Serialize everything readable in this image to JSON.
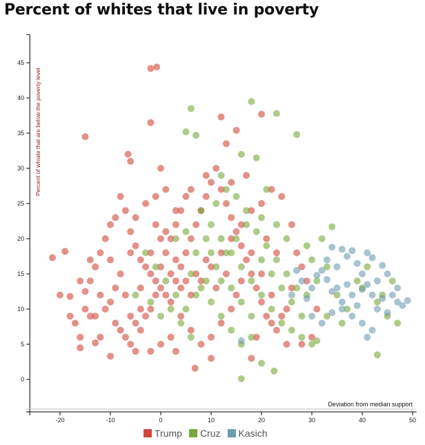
{
  "chart_data": {
    "type": "scatter",
    "title": "Percent of whites that live in poverty",
    "xlabel": "Deviation from median support",
    "ylabel": "Percent of whiate that are below the poverty level",
    "xlim": [
      -26,
      50.5
    ],
    "ylim": [
      -4.5,
      49
    ],
    "xticks": [
      "-20",
      "-10",
      "0",
      "10",
      "20",
      "30",
      "40",
      "50"
    ],
    "xtick_values": [
      -20,
      -10,
      0,
      10,
      20,
      30,
      40,
      50
    ],
    "yticks": [
      "0",
      "5",
      "10",
      "15",
      "20",
      "25",
      "30",
      "35",
      "40",
      "45"
    ],
    "ytick_values": [
      0,
      5,
      10,
      15,
      20,
      25,
      30,
      35,
      40,
      45
    ],
    "legend_position": "bottom-center",
    "series": [
      {
        "name": "Trump",
        "color": "#d0473a",
        "points": [
          [
            -2,
            44.2
          ],
          [
            -0.8,
            44.4
          ],
          [
            -15,
            34.5
          ],
          [
            -2,
            36.5
          ],
          [
            12,
            37.3
          ],
          [
            20,
            37.7
          ],
          [
            15,
            35.4
          ],
          [
            13,
            33.5
          ],
          [
            -6.5,
            32
          ],
          [
            -6,
            31
          ],
          [
            -21.5,
            17.3
          ],
          [
            -19,
            18.2
          ],
          [
            6.8,
            1.6
          ],
          [
            -10,
            3.3
          ],
          [
            -13,
            5.2
          ],
          [
            -16,
            4.5
          ],
          [
            -16,
            6
          ],
          [
            -17,
            8
          ],
          [
            -14,
            9
          ],
          [
            -18,
            11.8
          ],
          [
            -15,
            12.5
          ],
          [
            -14,
            14
          ],
          [
            -13,
            16
          ],
          [
            -12,
            18
          ],
          [
            -11,
            20
          ],
          [
            -10,
            22
          ],
          [
            -9,
            23
          ],
          [
            -8,
            26
          ],
          [
            -7,
            24
          ],
          [
            -6,
            21
          ],
          [
            -5,
            19
          ],
          [
            -4,
            17
          ],
          [
            -3,
            16
          ],
          [
            -2,
            15
          ],
          [
            -1,
            14
          ],
          [
            0,
            13
          ],
          [
            1,
            12
          ],
          [
            2,
            11
          ],
          [
            3,
            14
          ],
          [
            4,
            16
          ],
          [
            5,
            18
          ],
          [
            6,
            20
          ],
          [
            7,
            22
          ],
          [
            8,
            24
          ],
          [
            9,
            26
          ],
          [
            10,
            28
          ],
          [
            11,
            30
          ],
          [
            12,
            27
          ],
          [
            13,
            25
          ],
          [
            14,
            23
          ],
          [
            15,
            21
          ],
          [
            16,
            19
          ],
          [
            17,
            17
          ],
          [
            18,
            15
          ],
          [
            19,
            13
          ],
          [
            20,
            11
          ],
          [
            21,
            9
          ],
          [
            22,
            8
          ],
          [
            23,
            7
          ],
          [
            25,
            5
          ],
          [
            28,
            5
          ],
          [
            30,
            6
          ],
          [
            -9,
            8
          ],
          [
            -8,
            7
          ],
          [
            -7,
            6
          ],
          [
            -6,
            5
          ],
          [
            -5,
            4
          ],
          [
            -4,
            7
          ],
          [
            -3,
            9
          ],
          [
            -2,
            10
          ],
          [
            -1,
            12
          ],
          [
            0,
            16
          ],
          [
            1,
            18
          ],
          [
            2,
            20
          ],
          [
            3,
            22
          ],
          [
            4,
            24
          ],
          [
            5,
            26
          ],
          [
            0,
            30
          ],
          [
            1,
            27
          ],
          [
            -1,
            26
          ],
          [
            -3,
            25
          ],
          [
            -5,
            23
          ],
          [
            -6,
            18
          ],
          [
            -8,
            15
          ],
          [
            -9,
            13
          ],
          [
            -10,
            11
          ],
          [
            -11,
            10
          ],
          [
            -12,
            12
          ],
          [
            -13,
            9
          ],
          [
            -15,
            10
          ],
          [
            -16,
            14
          ],
          [
            -14,
            17
          ],
          [
            -10,
            17
          ],
          [
            -7,
            12
          ],
          [
            -4,
            13
          ],
          [
            -2,
            18
          ],
          [
            0,
            20
          ],
          [
            2,
            15
          ],
          [
            4,
            13
          ],
          [
            6,
            12
          ],
          [
            8,
            14
          ],
          [
            10,
            16
          ],
          [
            12,
            18
          ],
          [
            14,
            20
          ],
          [
            16,
            22
          ],
          [
            18,
            24
          ],
          [
            20,
            25
          ],
          [
            22,
            27
          ],
          [
            24,
            26
          ],
          [
            26,
            22
          ],
          [
            27,
            18
          ],
          [
            28,
            16
          ],
          [
            26,
            13
          ],
          [
            25,
            10
          ],
          [
            24,
            9
          ],
          [
            22,
            12
          ],
          [
            20,
            15
          ],
          [
            18,
            18
          ],
          [
            16,
            14
          ],
          [
            14,
            10
          ],
          [
            12,
            8
          ],
          [
            10,
            6
          ],
          [
            8,
            5
          ],
          [
            6,
            7
          ],
          [
            4,
            9
          ],
          [
            2,
            6
          ],
          [
            0,
            5
          ],
          [
            -2,
            4
          ],
          [
            -4,
            10
          ],
          [
            -6,
            9
          ],
          [
            7,
            15
          ],
          [
            9,
            17
          ],
          [
            11,
            13
          ],
          [
            13,
            15
          ],
          [
            15,
            12
          ],
          [
            3,
            17
          ],
          [
            5,
            14
          ],
          [
            1,
            21
          ],
          [
            -1,
            22
          ],
          [
            3,
            24
          ],
          [
            6,
            27
          ],
          [
            9,
            29
          ],
          [
            14,
            28
          ],
          [
            17,
            29
          ],
          [
            21,
            20
          ],
          [
            23,
            18
          ],
          [
            29,
            14
          ],
          [
            31,
            10
          ],
          [
            -20,
            12
          ],
          [
            -18,
            9
          ],
          [
            -12,
            6
          ],
          [
            -5,
            8
          ],
          [
            3,
            4
          ],
          [
            10,
            3
          ],
          [
            18,
            3
          ],
          [
            19,
            6
          ]
        ]
      },
      {
        "name": "Cruz",
        "color": "#78a93a",
        "points": [
          [
            6,
            38.5
          ],
          [
            18,
            39.5
          ],
          [
            23,
            37.8
          ],
          [
            5,
            35.2
          ],
          [
            7,
            34.7
          ],
          [
            27,
            34.8
          ],
          [
            16,
            32
          ],
          [
            19,
            31.5
          ],
          [
            12,
            29
          ],
          [
            21,
            27
          ],
          [
            16,
            0.1
          ],
          [
            22.5,
            1.2
          ],
          [
            20,
            2.3
          ],
          [
            43,
            3.5
          ],
          [
            34,
            21.7
          ],
          [
            8,
            24
          ],
          [
            10,
            22
          ],
          [
            12,
            20
          ],
          [
            14,
            18
          ],
          [
            16,
            16
          ],
          [
            18,
            14
          ],
          [
            20,
            12
          ],
          [
            22,
            10
          ],
          [
            24,
            8
          ],
          [
            26,
            7
          ],
          [
            28,
            6
          ],
          [
            30,
            5
          ],
          [
            31,
            5.5
          ],
          [
            6,
            15
          ],
          [
            8,
            13
          ],
          [
            10,
            11
          ],
          [
            12,
            9
          ],
          [
            14,
            7
          ],
          [
            16,
            5
          ],
          [
            18,
            6
          ],
          [
            5,
            10
          ],
          [
            7,
            12
          ],
          [
            9,
            14
          ],
          [
            11,
            16
          ],
          [
            13,
            18
          ],
          [
            15,
            20
          ],
          [
            17,
            22
          ],
          [
            19,
            21
          ],
          [
            21,
            19
          ],
          [
            23,
            17
          ],
          [
            25,
            15
          ],
          [
            27,
            13
          ],
          [
            29,
            12
          ],
          [
            31,
            14
          ],
          [
            33,
            16
          ],
          [
            35,
            12
          ],
          [
            37,
            10
          ],
          [
            39,
            14
          ],
          [
            41,
            16
          ],
          [
            43,
            11
          ],
          [
            45,
            9
          ],
          [
            46,
            14
          ],
          [
            47,
            8
          ],
          [
            36,
            8
          ],
          [
            33,
            9
          ],
          [
            3,
            12
          ],
          [
            1,
            14
          ],
          [
            -1,
            16
          ],
          [
            -3,
            18
          ],
          [
            2,
            10
          ],
          [
            4,
            8
          ],
          [
            6,
            6
          ],
          [
            0,
            9
          ],
          [
            -5,
            12
          ],
          [
            -2,
            11
          ],
          [
            10,
            18
          ],
          [
            12,
            14
          ],
          [
            14,
            13
          ],
          [
            16,
            11
          ],
          [
            18,
            9
          ],
          [
            20,
            17
          ],
          [
            22,
            15
          ],
          [
            24,
            13
          ],
          [
            26,
            11
          ],
          [
            28,
            9
          ],
          [
            25,
            20
          ],
          [
            23,
            22
          ],
          [
            20,
            23
          ],
          [
            17,
            24
          ],
          [
            15,
            26
          ],
          [
            13,
            27
          ],
          [
            11,
            25
          ],
          [
            9,
            20
          ],
          [
            7,
            18
          ],
          [
            5,
            21
          ],
          [
            3,
            20
          ],
          [
            29,
            19
          ],
          [
            30,
            17
          ],
          [
            32,
            20
          ],
          [
            40,
            13
          ],
          [
            44,
            12
          ]
        ]
      },
      {
        "name": "Kasich",
        "color": "#6f9bb0",
        "points": [
          [
            34,
            18.8
          ],
          [
            36,
            18.5
          ],
          [
            37,
            17.5
          ],
          [
            38,
            18.3
          ],
          [
            39,
            16.5
          ],
          [
            41,
            18
          ],
          [
            42,
            17.3
          ],
          [
            44,
            16.2
          ],
          [
            45,
            15
          ],
          [
            43,
            14
          ],
          [
            41,
            13.5
          ],
          [
            40,
            12.8
          ],
          [
            38,
            12
          ],
          [
            36,
            11
          ],
          [
            35,
            13
          ],
          [
            33,
            14.2
          ],
          [
            32,
            15.5
          ],
          [
            31,
            14.8
          ],
          [
            30,
            13
          ],
          [
            29,
            11.5
          ],
          [
            30,
            9
          ],
          [
            32,
            8
          ],
          [
            34,
            9.5
          ],
          [
            36,
            10
          ],
          [
            38,
            9
          ],
          [
            40,
            8
          ],
          [
            42,
            7
          ],
          [
            41,
            6
          ],
          [
            43,
            10
          ],
          [
            44,
            11.5
          ],
          [
            46,
            12
          ],
          [
            47,
            11
          ],
          [
            48,
            10.5
          ],
          [
            49,
            11.2
          ],
          [
            47,
            13
          ],
          [
            45,
            9.5
          ],
          [
            39,
            10.5
          ],
          [
            37,
            13.5
          ],
          [
            35,
            16
          ],
          [
            33,
            17
          ],
          [
            34,
            12.5
          ],
          [
            40,
            15
          ],
          [
            42,
            12
          ],
          [
            28,
            14
          ],
          [
            27,
            15.5
          ],
          [
            26,
            12
          ],
          [
            16,
            5.5
          ]
        ]
      }
    ]
  }
}
